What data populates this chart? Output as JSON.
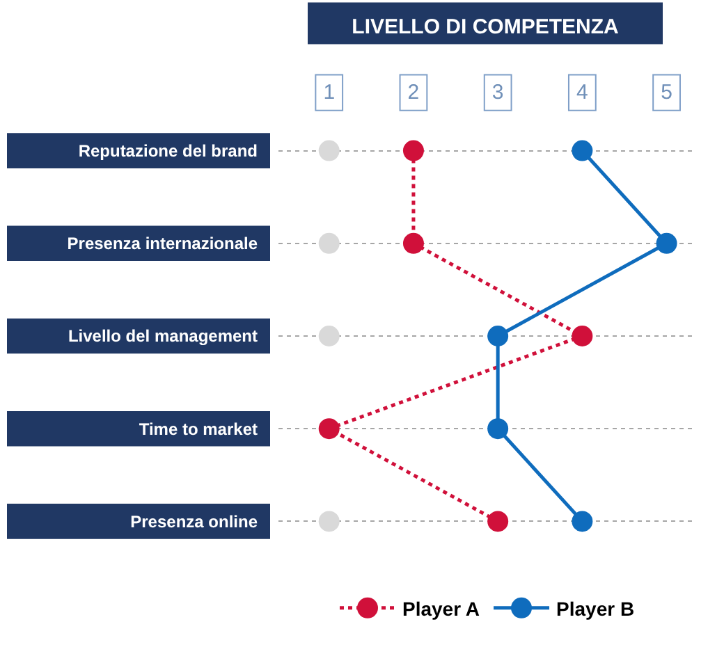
{
  "chart_data": {
    "type": "line",
    "title": "LIVELLO DI COMPETENZA",
    "orientation": "horizontal",
    "categories": [
      "Reputazione del brand",
      "Presenza internazionale",
      "Livello del management",
      "Time to market",
      "Presenza online"
    ],
    "xlim": [
      0.4,
      5.35
    ],
    "xticks": [
      1,
      2,
      3,
      4,
      5
    ],
    "grid": "y",
    "legend": "bottom",
    "marker": "circle",
    "series": [
      {
        "type": "scatter",
        "color": "#d9d9d9",
        "values": [
          1,
          1,
          1,
          null,
          1
        ]
      },
      {
        "name": "Player A",
        "color": "#d0103a",
        "line_style": "dotted",
        "values": [
          2,
          2,
          4,
          1,
          3
        ]
      },
      {
        "name": "Player B",
        "color": "#0f6cbd",
        "line_style": "solid",
        "values": [
          4,
          5,
          3,
          3,
          4
        ]
      }
    ]
  }
}
